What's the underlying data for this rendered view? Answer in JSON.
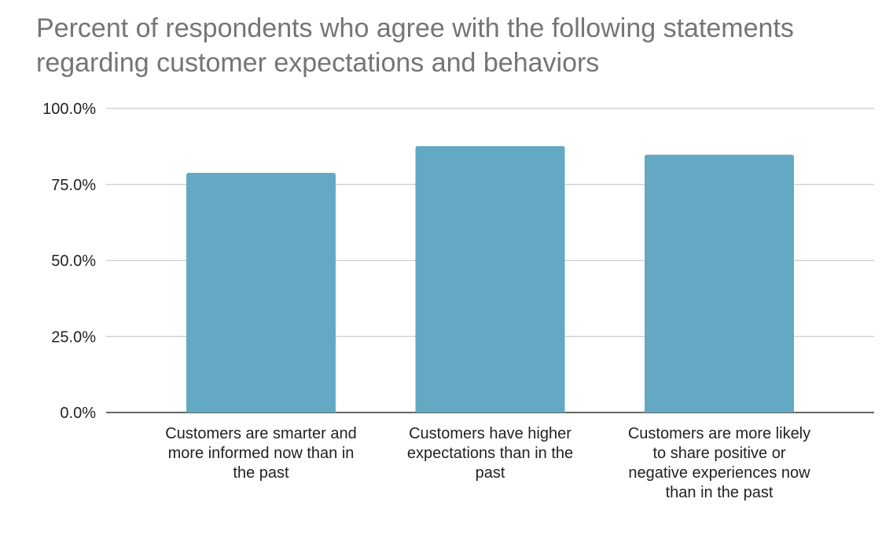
{
  "chart_data": {
    "type": "bar",
    "title": [
      "Percent of respondents who agree with the following statements",
      "regarding customer expectations and behaviors"
    ],
    "xlabel": "",
    "ylabel": "",
    "ylim": [
      0,
      100
    ],
    "yticks": [
      "0.0%",
      "25.0%",
      "50.0%",
      "75.0%",
      "100.0%"
    ],
    "ytick_values": [
      0,
      25,
      50,
      75,
      100
    ],
    "grid": true,
    "categories": [
      [
        "Customers are smarter and",
        "more informed now than in",
        "the past"
      ],
      [
        "Customers have higher",
        "expectations than in the",
        "past"
      ],
      [
        "Customers are more likely",
        "to share positive or",
        "negative experiences now",
        "than in the past"
      ]
    ],
    "values": [
      78.8,
      87.6,
      84.8
    ],
    "bar_color": "#64a9c3"
  }
}
